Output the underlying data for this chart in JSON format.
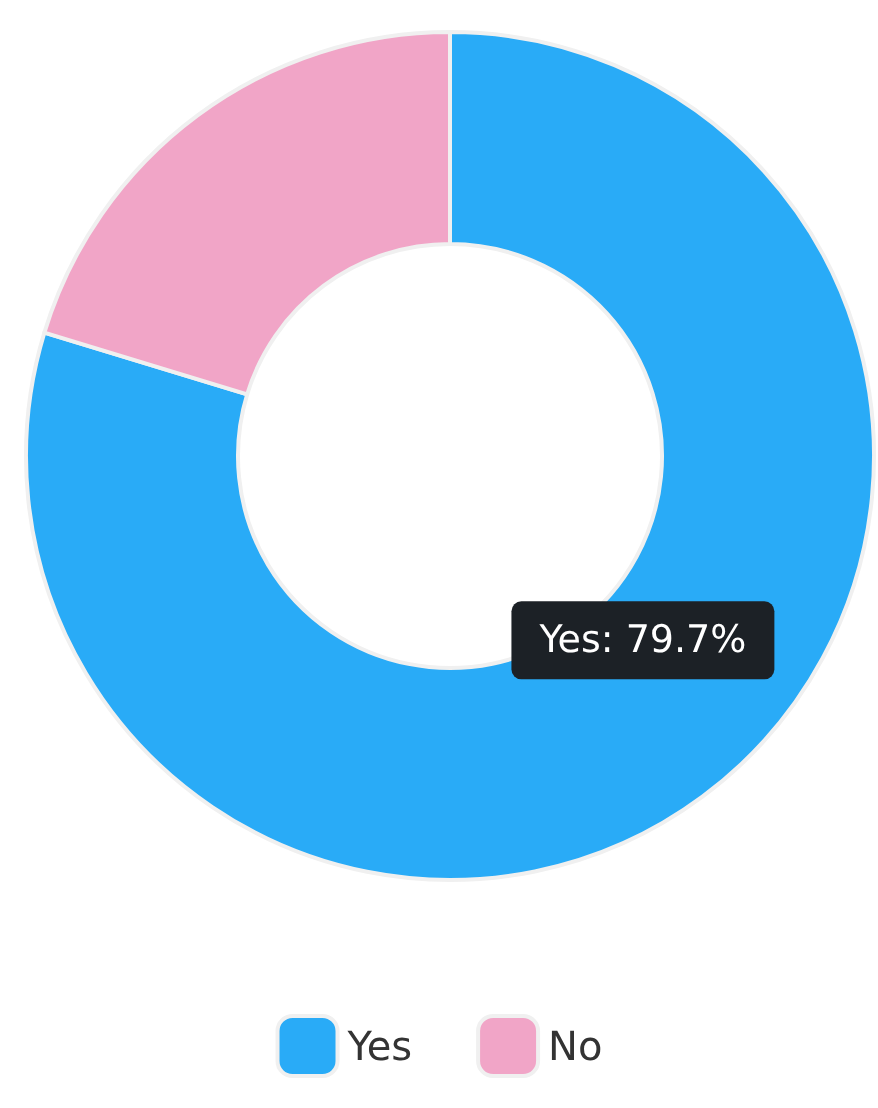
{
  "chart_data": {
    "type": "donut",
    "categories": [
      "Yes",
      "No"
    ],
    "values": [
      79.7,
      20.3
    ],
    "colors": [
      "#29abf7",
      "#f1a5c7"
    ],
    "value_labels": [
      "Yes: 79.7%",
      null
    ],
    "legend": "bottom"
  }
}
